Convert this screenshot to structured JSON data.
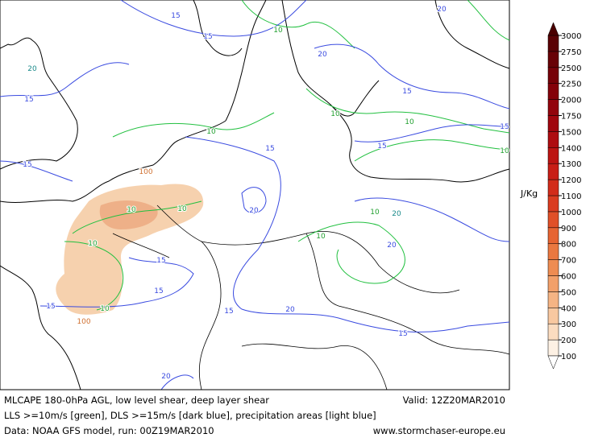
{
  "map": {
    "contour_labels": [
      20,
      15,
      15,
      10,
      20,
      20,
      15,
      15,
      10,
      10,
      15,
      10,
      15,
      15,
      10,
      15,
      100,
      20,
      10,
      10,
      10,
      20,
      10,
      10,
      20,
      15,
      15,
      15,
      10,
      20,
      15,
      100,
      15,
      20
    ]
  },
  "colorbar": {
    "unit": "J/Kg",
    "ticks": [
      100,
      200,
      300,
      400,
      500,
      600,
      700,
      800,
      900,
      1000,
      1100,
      1200,
      1300,
      1400,
      1500,
      1750,
      2000,
      2250,
      2500,
      2750,
      3000
    ]
  },
  "footer": {
    "title": "MLCAPE 180-0hPa AGL, low level shear, deep layer shear",
    "valid": "Valid: 12Z20MAR2010",
    "legend": "LLS >=10m/s [green], DLS >=15m/s [dark blue], precipitation areas [light blue]",
    "source": "Data: NOAA GFS model, run: 00Z19MAR2010",
    "site": "www.stormchaser-europe.eu"
  }
}
